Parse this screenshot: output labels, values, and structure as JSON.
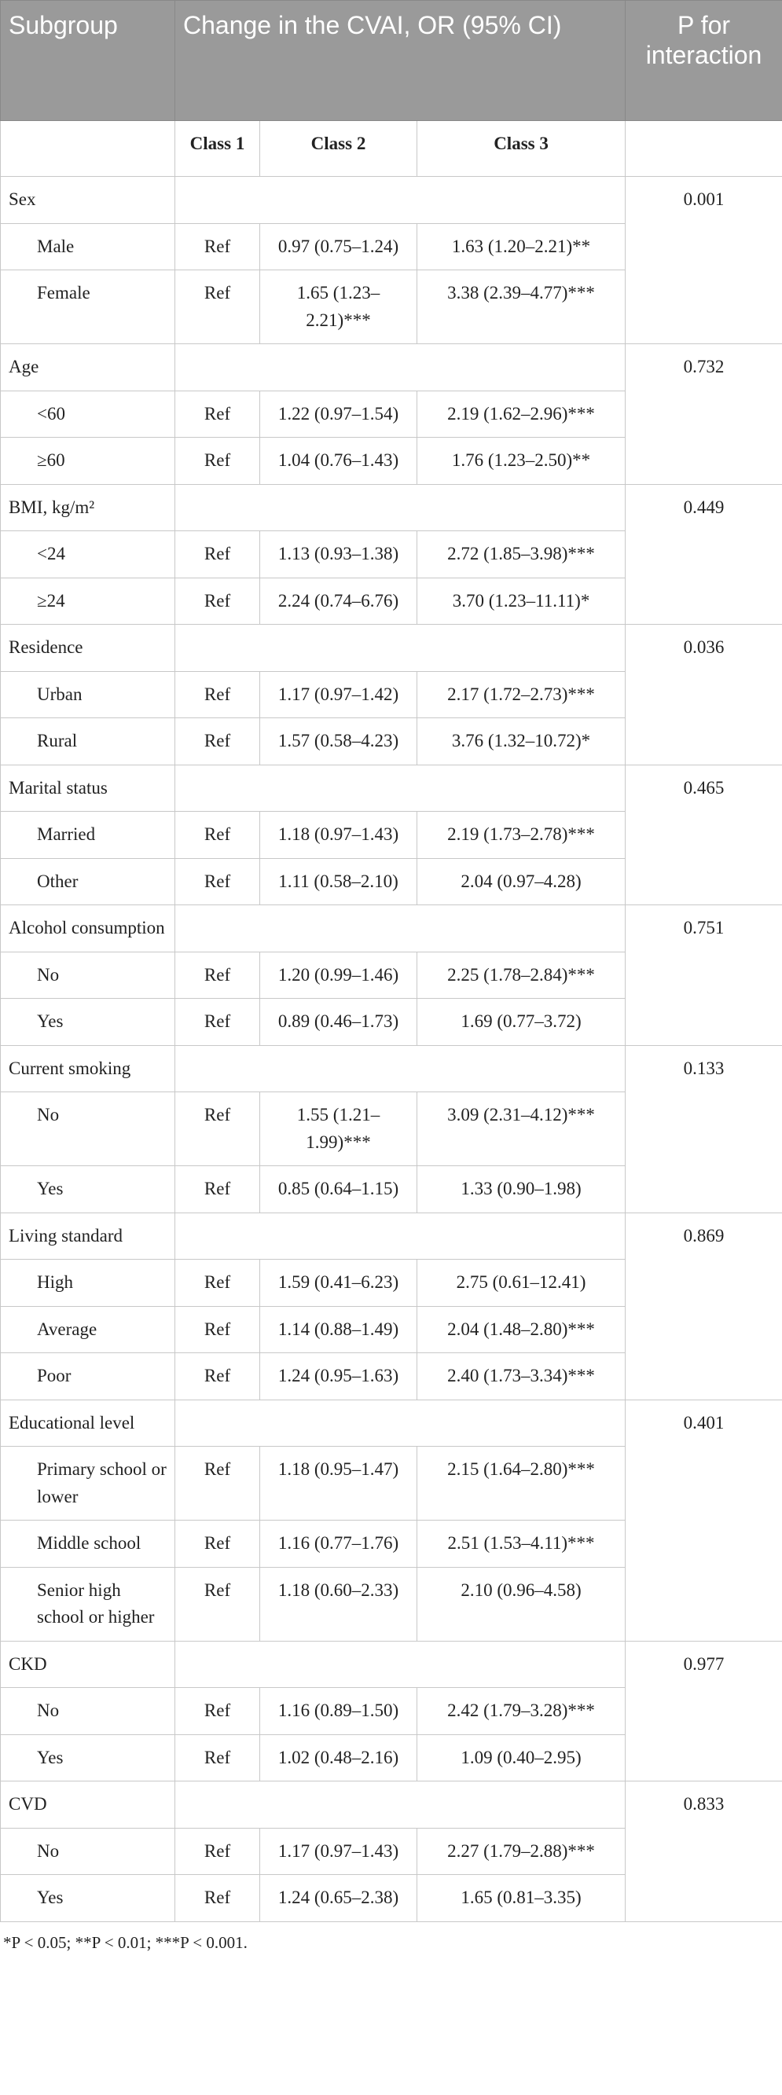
{
  "table": {
    "header": [
      "Subgroup",
      "Change in the CVAI, OR (95% CI)",
      "P for interaction"
    ],
    "subheader": [
      "Class 1",
      "Class 2",
      "Class 3"
    ],
    "groups": [
      {
        "name": "Sex",
        "p": "0.001",
        "rows": [
          [
            "Male",
            "Ref",
            "0.97 (0.75–1.24)",
            "1.63 (1.20–2.21)**"
          ],
          [
            "Female",
            "Ref",
            "1.65 (1.23–2.21)***",
            "3.38 (2.39–4.77)***"
          ]
        ]
      },
      {
        "name": "Age",
        "p": "0.732",
        "rows": [
          [
            "<60",
            "Ref",
            "1.22 (0.97–1.54)",
            "2.19 (1.62–2.96)***"
          ],
          [
            "≥60",
            "Ref",
            "1.04 (0.76–1.43)",
            "1.76 (1.23–2.50)**"
          ]
        ]
      },
      {
        "name": "BMI, kg/m²",
        "p": "0.449",
        "rows": [
          [
            "<24",
            "Ref",
            "1.13 (0.93–1.38)",
            "2.72 (1.85–3.98)***"
          ],
          [
            "≥24",
            "Ref",
            "2.24 (0.74–6.76)",
            "3.70 (1.23–11.11)*"
          ]
        ]
      },
      {
        "name": "Residence",
        "p": "0.036",
        "rows": [
          [
            "Urban",
            "Ref",
            "1.17 (0.97–1.42)",
            "2.17 (1.72–2.73)***"
          ],
          [
            "Rural",
            "Ref",
            "1.57 (0.58–4.23)",
            "3.76 (1.32–10.72)*"
          ]
        ]
      },
      {
        "name": "Marital status",
        "p": "0.465",
        "rows": [
          [
            "Married",
            "Ref",
            "1.18 (0.97–1.43)",
            "2.19 (1.73–2.78)***"
          ],
          [
            "Other",
            "Ref",
            "1.11 (0.58–2.10)",
            "2.04 (0.97–4.28)"
          ]
        ]
      },
      {
        "name": "Alcohol consumption",
        "p": "0.751",
        "rows": [
          [
            "No",
            "Ref",
            "1.20 (0.99–1.46)",
            "2.25 (1.78–2.84)***"
          ],
          [
            "Yes",
            "Ref",
            "0.89 (0.46–1.73)",
            "1.69 (0.77–3.72)"
          ]
        ]
      },
      {
        "name": "Current smoking",
        "p": "0.133",
        "rows": [
          [
            "No",
            "Ref",
            "1.55 (1.21–1.99)***",
            "3.09 (2.31–4.12)***"
          ],
          [
            "Yes",
            "Ref",
            "0.85 (0.64–1.15)",
            "1.33 (0.90–1.98)"
          ]
        ]
      },
      {
        "name": "Living standard",
        "p": "0.869",
        "rows": [
          [
            "High",
            "Ref",
            "1.59 (0.41–6.23)",
            "2.75 (0.61–12.41)"
          ],
          [
            "Average",
            "Ref",
            "1.14 (0.88–1.49)",
            "2.04 (1.48–2.80)***"
          ],
          [
            "Poor",
            "Ref",
            "1.24 (0.95–1.63)",
            "2.40 (1.73–3.34)***"
          ]
        ]
      },
      {
        "name": "Educational level",
        "p": "0.401",
        "rows": [
          [
            "Primary school or lower",
            "Ref",
            "1.18 (0.95–1.47)",
            "2.15 (1.64–2.80)***"
          ],
          [
            "Middle school",
            "Ref",
            "1.16 (0.77–1.76)",
            "2.51 (1.53–4.11)***"
          ],
          [
            "Senior high school or higher",
            "Ref",
            "1.18 (0.60–2.33)",
            "2.10 (0.96–4.58)"
          ]
        ]
      },
      {
        "name": "CKD",
        "p": "0.977",
        "rows": [
          [
            "No",
            "Ref",
            "1.16 (0.89–1.50)",
            "2.42 (1.79–3.28)***"
          ],
          [
            "Yes",
            "Ref",
            "1.02 (0.48–2.16)",
            "1.09 (0.40–2.95)"
          ]
        ]
      },
      {
        "name": "CVD",
        "p": "0.833",
        "rows": [
          [
            "No",
            "Ref",
            "1.17 (0.97–1.43)",
            "2.27 (1.79–2.88)***"
          ],
          [
            "Yes",
            "Ref",
            "1.24 (0.65–2.38)",
            "1.65 (0.81–3.35)"
          ]
        ]
      }
    ],
    "footnote": "*P < 0.05; **P < 0.01; ***P < 0.001."
  }
}
